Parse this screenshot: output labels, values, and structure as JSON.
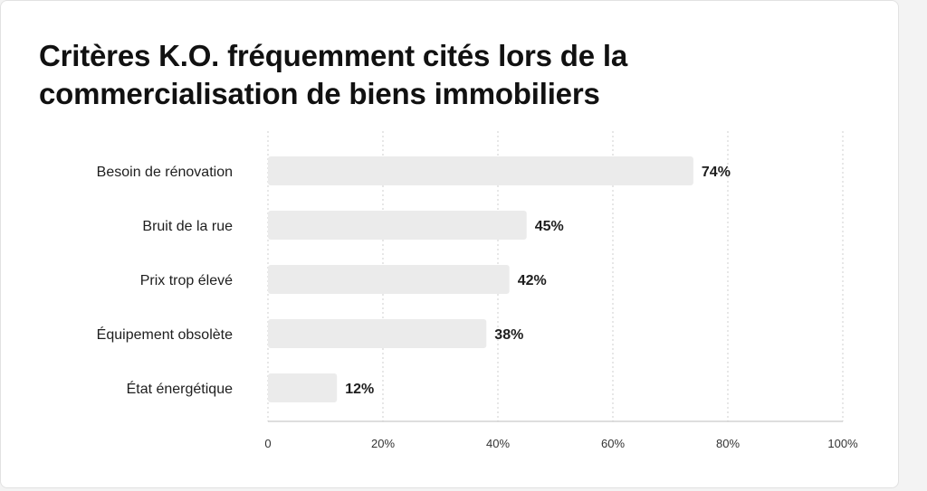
{
  "chart_data": {
    "type": "bar",
    "orientation": "horizontal",
    "title": "Critères K.O. fréquemment cités lors de la commercialisation de biens immobiliers",
    "categories": [
      "Besoin de rénovation",
      "Bruit de la rue",
      "Prix trop élevé",
      "Équipement obsolète",
      "État énergétique"
    ],
    "values": [
      74,
      45,
      42,
      38,
      12
    ],
    "value_labels": [
      "74%",
      "45%",
      "42%",
      "38%",
      "12%"
    ],
    "xlim": [
      0,
      100
    ],
    "ticks": [
      0,
      20,
      40,
      60,
      80,
      100
    ],
    "tick_labels": [
      "0",
      "20%",
      "40%",
      "60%",
      "80%",
      "100%"
    ],
    "grid": true,
    "legend": "none",
    "colors": {
      "bar": "#ebebeb",
      "grid": "#cfcfcf",
      "axis": "#bdbdbd",
      "text": "#1e1e1e"
    }
  }
}
